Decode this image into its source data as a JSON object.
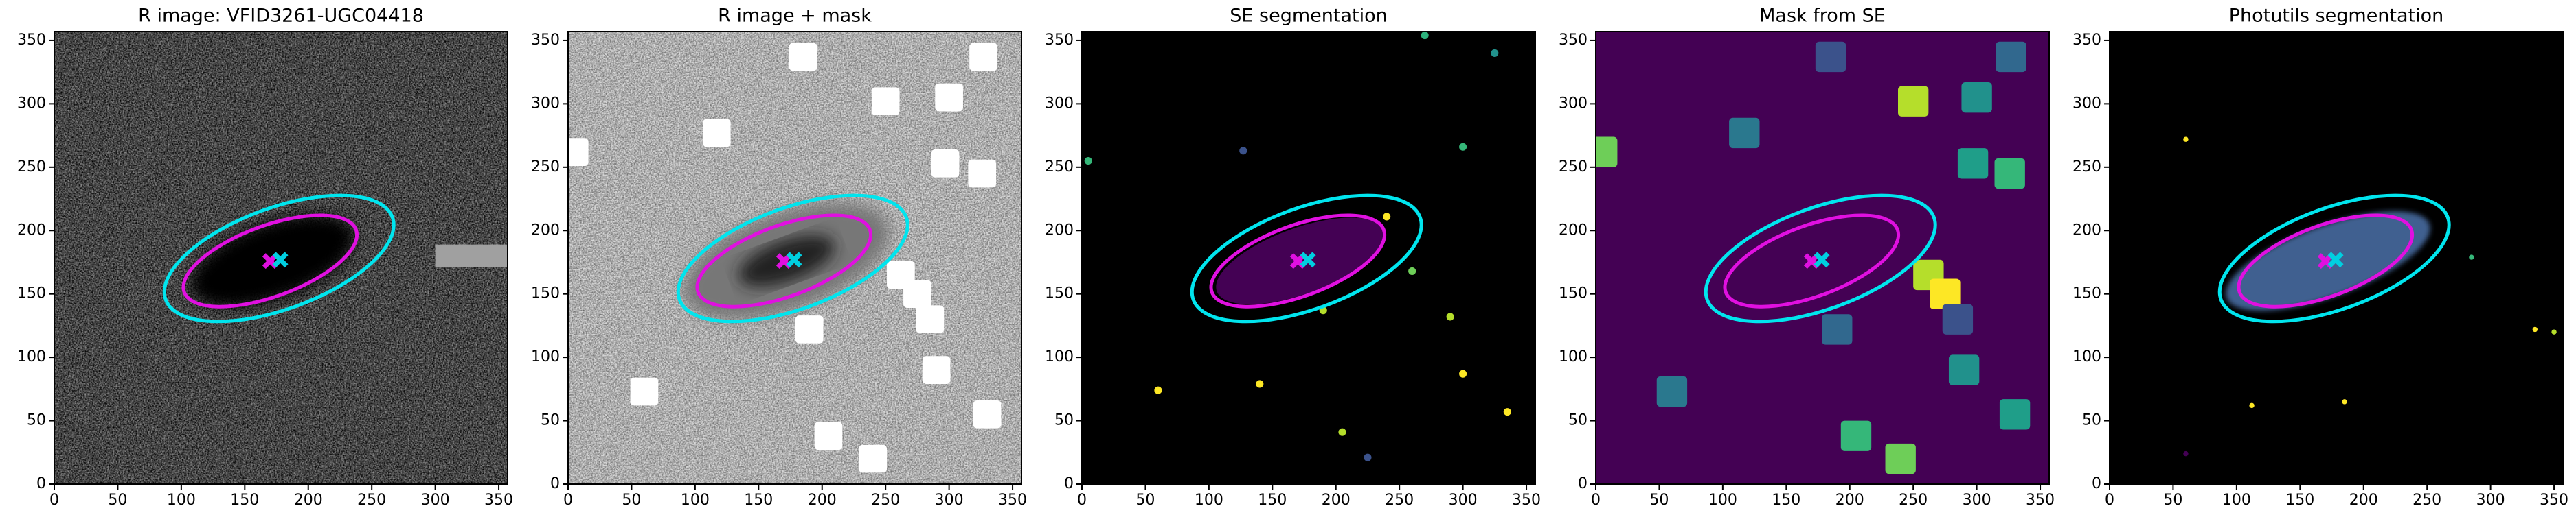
{
  "chart_data": [
    {
      "type": "image",
      "title": "R image: VFID3261-UGC04418",
      "xlim": [
        0,
        357
      ],
      "ylim": [
        0,
        357
      ],
      "xticks": [
        0,
        50,
        100,
        150,
        200,
        250,
        300,
        350
      ],
      "yticks": [
        0,
        50,
        100,
        150,
        200,
        250,
        300,
        350
      ],
      "ellipses": [
        {
          "color": "#00e5ee",
          "cx": 177,
          "cy": 178,
          "a": 95,
          "b": 40,
          "angle": 20
        },
        {
          "color": "#e010e0",
          "cx": 170,
          "cy": 176,
          "a": 72,
          "b": 28,
          "angle": 20
        }
      ],
      "markers": [
        {
          "color": "#e010e0",
          "x": 170,
          "y": 176
        },
        {
          "color": "#00cfe0",
          "x": 178,
          "y": 177
        }
      ]
    },
    {
      "type": "image",
      "title": "R image + mask",
      "xlim": [
        0,
        357
      ],
      "ylim": [
        0,
        357
      ],
      "xticks": [
        0,
        50,
        100,
        150,
        200,
        250,
        300,
        350
      ],
      "yticks": [
        0,
        50,
        100,
        150,
        200,
        250,
        300,
        350
      ],
      "ellipses": [
        {
          "color": "#00e5ee",
          "cx": 177,
          "cy": 178,
          "a": 95,
          "b": 40,
          "angle": 20
        },
        {
          "color": "#e010e0",
          "cx": 170,
          "cy": 176,
          "a": 72,
          "b": 28,
          "angle": 20
        }
      ],
      "markers": [
        {
          "color": "#e010e0",
          "x": 170,
          "y": 176
        },
        {
          "color": "#00cfe0",
          "x": 178,
          "y": 177
        }
      ]
    },
    {
      "type": "image",
      "title": "SE segmentation",
      "xlim": [
        0,
        357
      ],
      "ylim": [
        0,
        357
      ],
      "xticks": [
        0,
        50,
        100,
        150,
        200,
        250,
        300,
        350
      ],
      "yticks": [
        0,
        50,
        100,
        150,
        200,
        250,
        300,
        350
      ],
      "ellipses": [
        {
          "color": "#00e5ee",
          "cx": 177,
          "cy": 178,
          "a": 95,
          "b": 40,
          "angle": 20
        },
        {
          "color": "#e010e0",
          "cx": 170,
          "cy": 176,
          "a": 72,
          "b": 28,
          "angle": 20
        }
      ],
      "markers": [
        {
          "color": "#e010e0",
          "x": 170,
          "y": 176
        },
        {
          "color": "#00cfe0",
          "x": 178,
          "y": 177
        }
      ]
    },
    {
      "type": "image",
      "title": "Mask from SE",
      "xlim": [
        0,
        357
      ],
      "ylim": [
        0,
        357
      ],
      "xticks": [
        0,
        50,
        100,
        150,
        200,
        250,
        300,
        350
      ],
      "yticks": [
        0,
        50,
        100,
        150,
        200,
        250,
        300,
        350
      ],
      "ellipses": [
        {
          "color": "#00e5ee",
          "cx": 177,
          "cy": 178,
          "a": 95,
          "b": 40,
          "angle": 20
        },
        {
          "color": "#e010e0",
          "cx": 170,
          "cy": 176,
          "a": 72,
          "b": 28,
          "angle": 20
        }
      ],
      "markers": [
        {
          "color": "#e010e0",
          "x": 170,
          "y": 176
        },
        {
          "color": "#00cfe0",
          "x": 178,
          "y": 177
        }
      ]
    },
    {
      "type": "image",
      "title": "Photutils segmentation",
      "xlim": [
        0,
        357
      ],
      "ylim": [
        0,
        357
      ],
      "xticks": [
        0,
        50,
        100,
        150,
        200,
        250,
        300,
        350
      ],
      "yticks": [
        0,
        50,
        100,
        150,
        200,
        250,
        300,
        350
      ],
      "ellipses": [
        {
          "color": "#00e5ee",
          "cx": 177,
          "cy": 178,
          "a": 95,
          "b": 40,
          "angle": 20
        },
        {
          "color": "#e010e0",
          "cx": 170,
          "cy": 176,
          "a": 72,
          "b": 28,
          "angle": 20
        }
      ],
      "markers": [
        {
          "color": "#e010e0",
          "x": 170,
          "y": 176
        },
        {
          "color": "#00cfe0",
          "x": 178,
          "y": 177
        }
      ]
    }
  ]
}
